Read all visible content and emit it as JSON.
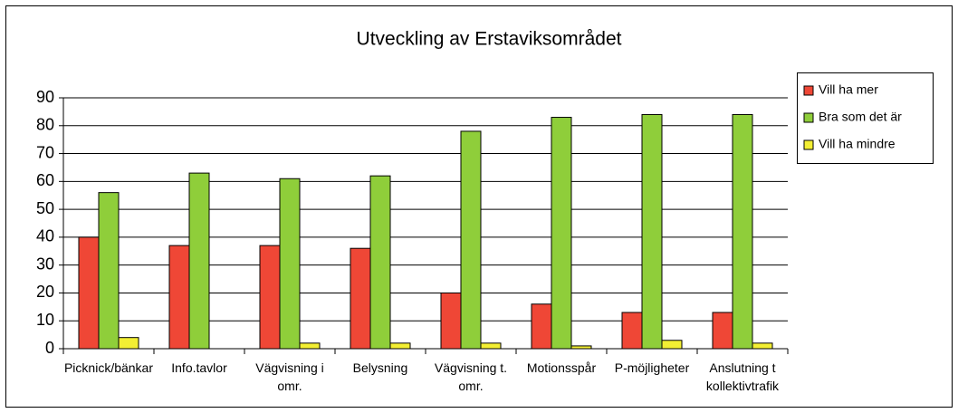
{
  "chart_data": {
    "type": "bar",
    "title": "Utveckling av Erstaviksområdet",
    "categories": [
      "Picknick/bänkar",
      "Info.tavlor",
      "Vägvisning i omr.",
      "Belysning",
      "Vägvisning t. omr.",
      "Motionsspår",
      "P-möjligheter",
      "Anslutning t kollektivtrafik"
    ],
    "series": [
      {
        "name": "Vill ha mer",
        "color": "#ef4736",
        "values": [
          40,
          37,
          37,
          36,
          20,
          16,
          13,
          13
        ]
      },
      {
        "name": "Bra som det är",
        "color": "#8fce3a",
        "values": [
          56,
          63,
          61,
          62,
          78,
          83,
          84,
          84
        ]
      },
      {
        "name": "Vill ha mindre",
        "color": "#f3ef33",
        "values": [
          4,
          0,
          2,
          2,
          2,
          1,
          3,
          2
        ]
      }
    ],
    "ylim": [
      0,
      90
    ],
    "yticks": [
      0,
      10,
      20,
      30,
      40,
      50,
      60,
      70,
      80,
      90
    ],
    "grid": true,
    "legend": "right"
  }
}
